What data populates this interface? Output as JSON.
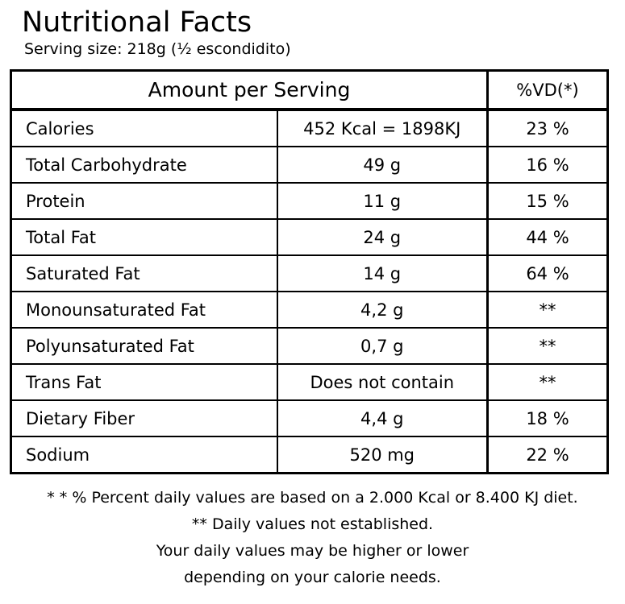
{
  "header": {
    "title": "Nutritional Facts",
    "serving_size": "Serving size: 218g (½ escondidito)"
  },
  "table": {
    "headers": {
      "amount_per_serving": "Amount per Serving",
      "daily_value": "%VD(*)"
    },
    "rows": [
      {
        "name": "Calories",
        "amount": "452 Kcal = 1898KJ",
        "dv": "23 %"
      },
      {
        "name": "Total Carbohydrate",
        "amount": "49 g",
        "dv": "16 %"
      },
      {
        "name": "Protein",
        "amount": "11 g",
        "dv": "15 %"
      },
      {
        "name": "Total Fat",
        "amount": "24 g",
        "dv": "44 %"
      },
      {
        "name": "Saturated Fat",
        "amount": "14 g",
        "dv": "64 %"
      },
      {
        "name": "Monounsaturated Fat",
        "amount": "4,2 g",
        "dv": "**"
      },
      {
        "name": "Polyunsaturated Fat",
        "amount": "0,7 g",
        "dv": "**"
      },
      {
        "name": "Trans Fat",
        "amount": "Does not contain",
        "dv": "**"
      },
      {
        "name": "Dietary Fiber",
        "amount": "4,4 g",
        "dv": "18 %"
      },
      {
        "name": "Sodium",
        "amount": "520 mg",
        "dv": "22 %"
      }
    ]
  },
  "footnotes": {
    "line1": "* * % Percent daily values are based on a 2.000 Kcal or 8.400 KJ diet.",
    "line2": "** Daily values not established.",
    "line3": "Your daily values may be higher or lower",
    "line4": "depending on your calorie needs."
  }
}
